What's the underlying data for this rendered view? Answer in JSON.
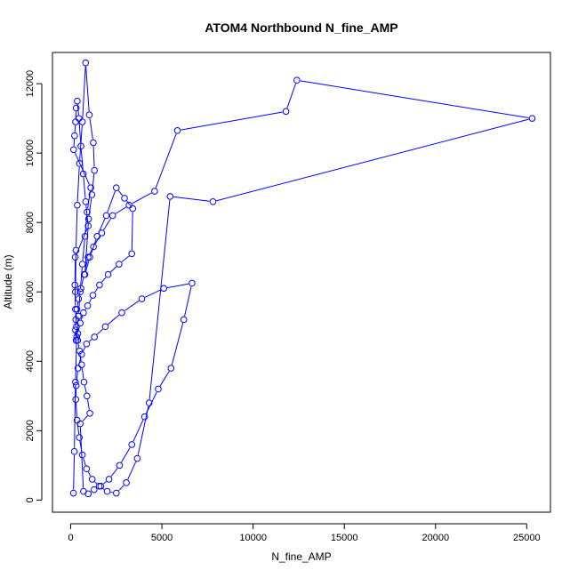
{
  "chart_data": {
    "type": "line",
    "title": "ATOM4 Northbound N_fine_AMP",
    "xlabel": "N_fine_AMP",
    "ylabel": "Altitude (m)",
    "xlim": [
      -1000,
      26300
    ],
    "ylim": [
      -350,
      12900
    ],
    "xticks": [
      "0",
      "5000",
      "10000",
      "15000",
      "20000",
      "25000"
    ],
    "yticks": [
      "0",
      "2000",
      "4000",
      "6000",
      "8000",
      "10000",
      "12000"
    ],
    "grid": false,
    "legend": "none",
    "series": [
      {
        "color": "#0000ff",
        "marker": "open-circle",
        "x": [
          150,
          200,
          260,
          330,
          420,
          520,
          640,
          780,
          900,
          1100,
          160,
          210,
          270,
          300,
          360,
          450,
          560,
          690,
          820,
          960,
          250,
          230,
          260,
          310,
          380,
          480,
          600,
          730,
          890,
          1050,
          520,
          700,
          960,
          1280,
          1650,
          2100,
          2680,
          3350,
          4050,
          4800,
          5500,
          6200,
          6650,
          5100,
          3900,
          2800,
          1900,
          1300,
          870,
          600,
          400,
          300,
          280,
          350,
          470,
          640,
          870,
          1180,
          1560,
          2000,
          2500,
          3050,
          3650,
          4300,
          5450,
          7800,
          25300,
          12400,
          11800,
          5850,
          4600,
          3200,
          2300,
          1700,
          1250,
          950,
          740,
          560,
          430,
          340,
          280,
          260,
          300,
          390,
          520,
          700,
          930,
          1220,
          1580,
          2050,
          2650,
          3350,
          3400,
          2950,
          2500,
          1950,
          1450,
          1050,
          780,
          980,
          1160,
          1300,
          1240,
          1020,
          820,
          640,
          480,
          360,
          290,
          260
        ],
        "y": [
          200,
          1400,
          3400,
          4700,
          5300,
          6000,
          6800,
          7600,
          8300,
          9000,
          10100,
          10500,
          10900,
          11300,
          11500,
          11000,
          10200,
          9400,
          8600,
          7900,
          7000,
          6200,
          5500,
          5000,
          4600,
          4300,
          3900,
          3400,
          3000,
          2500,
          2200,
          250,
          180,
          300,
          400,
          600,
          1000,
          1600,
          2400,
          3200,
          3800,
          5200,
          6250,
          6100,
          5800,
          5400,
          5000,
          4700,
          4500,
          4200,
          3800,
          3300,
          2900,
          2300,
          1800,
          1300,
          900,
          600,
          400,
          250,
          200,
          500,
          1200,
          2800,
          8750,
          8600,
          11000,
          12100,
          11200,
          10650,
          8900,
          8500,
          8200,
          7700,
          7300,
          7000,
          6500,
          6100,
          5800,
          5500,
          5200,
          4900,
          4600,
          4800,
          5100,
          5400,
          5600,
          5900,
          6200,
          6500,
          6800,
          7100,
          8400,
          8700,
          9000,
          8200,
          7600,
          7000,
          6500,
          8100,
          8800,
          9500,
          10300,
          11100,
          12600,
          10900,
          9700,
          8500,
          7200,
          6000
        ]
      }
    ]
  }
}
